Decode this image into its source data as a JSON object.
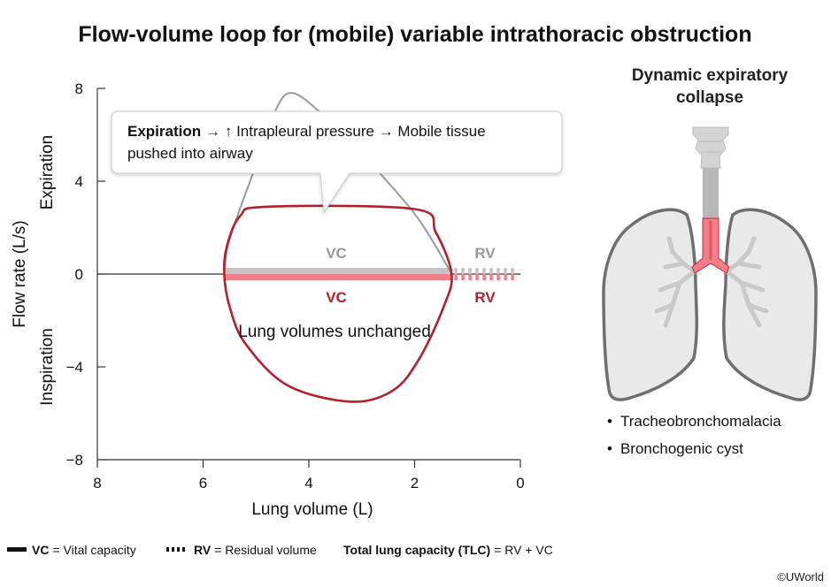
{
  "title": "Flow-volume loop for (mobile) variable intrathoracic obstruction",
  "chart_data": {
    "type": "line",
    "xlabel": "Lung volume (L)",
    "ylabel": "Flow rate (L/s)",
    "ylabel_upper": "Expiration",
    "ylabel_lower": "Inspiration",
    "x_reversed": true,
    "xlim": [
      8,
      0
    ],
    "ylim": [
      -8,
      8
    ],
    "xticks": [
      8,
      6,
      4,
      2,
      0
    ],
    "yticks": [
      8,
      4,
      0,
      -4,
      -8
    ],
    "series": [
      {
        "style": "normal-reference",
        "color": "#9a9a9a",
        "x": [
          5.6,
          5.5,
          5.0,
          4.6,
          4.3,
          3.8,
          3.2,
          2.6,
          2.0,
          1.6,
          1.3
        ],
        "y": [
          0,
          1.5,
          4.7,
          7.2,
          7.8,
          7.0,
          5.7,
          4.2,
          2.6,
          1.2,
          0
        ]
      },
      {
        "style": "obstructed-loop",
        "color": "#b3202a",
        "x": [
          5.6,
          5.55,
          5.3,
          4.8,
          2.0,
          1.6,
          1.3,
          1.45,
          1.9,
          2.4,
          3.2,
          4.4,
          5.2,
          5.5,
          5.6
        ],
        "y": [
          0,
          1.2,
          2.5,
          2.9,
          2.8,
          1.8,
          0,
          -1.4,
          -3.6,
          -5.0,
          -5.5,
          -4.8,
          -3.0,
          -1.4,
          0
        ]
      }
    ],
    "bars": [
      {
        "label": "VC",
        "segment": "upper",
        "color": "#c4c4c4",
        "x": [
          5.6,
          1.3
        ],
        "style": "solid"
      },
      {
        "label": "RV",
        "segment": "upper",
        "color": "#c4c4c4",
        "x": [
          1.3,
          0
        ],
        "style": "dashed"
      },
      {
        "label": "VC",
        "segment": "lower",
        "color": "#f07f8a",
        "x": [
          5.6,
          1.3
        ],
        "style": "solid"
      },
      {
        "label": "RV",
        "segment": "lower",
        "color": "#f07f8a",
        "x": [
          1.3,
          0
        ],
        "style": "dashed"
      }
    ],
    "annotations": {
      "volumes": "Lung volumes unchanged",
      "callout_bold": "Expiration",
      "callout_line1": "→ ↑ Intrapleural pressure → Mobile tissue",
      "callout_line2": "pushed into airway"
    },
    "bar_labels": {
      "vc_top": "VC",
      "rv_top": "RV",
      "vc_bottom": "VC",
      "rv_bottom": "RV"
    }
  },
  "side_panel": {
    "title_line1": "Dynamic expiratory",
    "title_line2": "collapse",
    "bullets": [
      "Tracheobronchomalacia",
      "Bronchogenic cyst"
    ],
    "bullet_char": "•"
  },
  "legend": {
    "vc_abbr": "VC",
    "vc_text": "= Vital capacity",
    "rv_abbr": "RV",
    "rv_text": "= Residual volume",
    "tlc_bold": "Total lung capacity (TLC)",
    "tlc_text": "= RV + VC"
  },
  "copyright": "©UWorld",
  "colors": {
    "red": "#b3202a",
    "pink": "#f07f8a",
    "gray": "#9a9a9a",
    "lightgray": "#c4c4c4"
  }
}
